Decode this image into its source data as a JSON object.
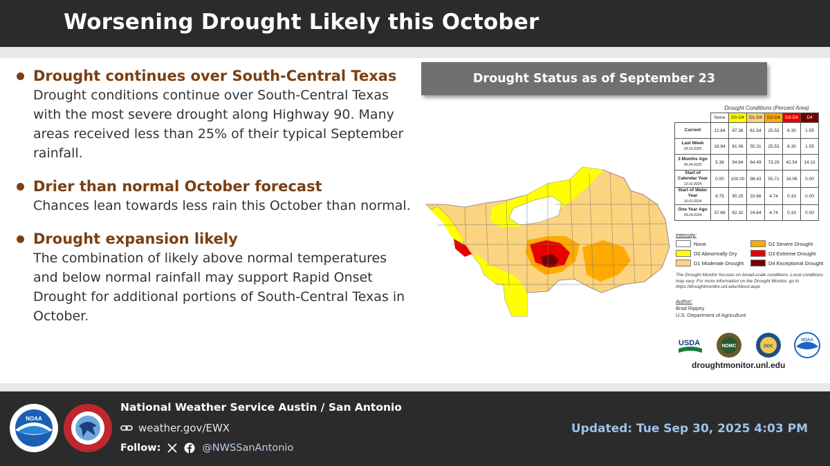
{
  "header": {
    "title": "Worsening Drought Likely this October"
  },
  "bullets": [
    {
      "heading": "Drought continues over South-Central Texas",
      "body": "Drought conditions continue over South-Central Texas with the most severe drought along Highway 90. Many areas received less than 25% of their typical September rainfall."
    },
    {
      "heading": "Drier than normal October forecast",
      "body": "Chances lean towards less rain this October than normal."
    },
    {
      "heading": "Drought expansion likely",
      "body": "The combination of likely above normal temperatures and below normal rainfall may support Rapid Onset Drought for additional portions of South-Central Texas in October."
    }
  ],
  "map": {
    "title": "Drought Status as of September 23",
    "table_caption": "Drought Conditions (Percent Area)",
    "columns": [
      "None",
      "D0-D4",
      "D1-D4",
      "D2-D4",
      "D3-D4",
      "D4"
    ],
    "column_colors": [
      "#ffffff",
      "#ffff00",
      "#fcd37f",
      "#ffaa00",
      "#e60000",
      "#730000"
    ],
    "rows": [
      {
        "label": "Current",
        "date": "",
        "values": [
          "12.64",
          "87.36",
          "61.54",
          "25.53",
          "6.30",
          "1.05"
        ]
      },
      {
        "label": "Last Week",
        "date": "09-16-2025",
        "values": [
          "18.94",
          "81.06",
          "55.31",
          "25.53",
          "6.30",
          "1.05"
        ]
      },
      {
        "label": "3 Months Ago",
        "date": "06-24-2025",
        "values": [
          "5.36",
          "94.64",
          "84.49",
          "73.29",
          "42.54",
          "14.13"
        ]
      },
      {
        "label": "Start of Calendar Year",
        "date": "12-31-2024",
        "values": [
          "0.00",
          "100.00",
          "98.43",
          "55.71",
          "18.06",
          "0.00"
        ]
      },
      {
        "label": "Start of Water Year",
        "date": "10-01-2024",
        "values": [
          "9.75",
          "90.25",
          "33.66",
          "4.74",
          "0.33",
          "0.00"
        ]
      },
      {
        "label": "One Year Ago",
        "date": "09-24-2024",
        "values": [
          "37.68",
          "62.32",
          "24.64",
          "4.74",
          "0.33",
          "0.00"
        ]
      }
    ],
    "intensity_title": "Intensity:",
    "intensity": [
      {
        "label": "None",
        "color": "#ffffff"
      },
      {
        "label": "D2 Severe Drought",
        "color": "#ffaa00"
      },
      {
        "label": "D0 Abnormally Dry",
        "color": "#ffff00"
      },
      {
        "label": "D3 Extreme Drought",
        "color": "#e60000"
      },
      {
        "label": "D1 Moderate Drought",
        "color": "#fcd37f"
      },
      {
        "label": "D4 Exceptional Drought",
        "color": "#730000"
      }
    ],
    "note": "The Drought Monitor focuses on broad-scale conditions. Local conditions may vary. For more information on the Drought Monitor, go to https://droughtmonitor.unl.edu/About.aspx",
    "author_title": "Author:",
    "author_name": "Brad Rippey",
    "author_org": "U.S. Department of Agriculture",
    "logos": {
      "usda": "USDA",
      "ndmc": "NDMC",
      "doc": "DOC",
      "noaa": "NOAA"
    },
    "url": "droughtmonitor.unl.edu"
  },
  "footer": {
    "office": "National Weather Service Austin / San Antonio",
    "website": "weather.gov/EWX",
    "follow_label": "Follow:",
    "handle": "@NWSSanAntonio",
    "updated": "Updated: Tue Sep 30, 2025 4:03 PM",
    "noaa_logo_text": "NOAA"
  },
  "colors": {
    "header_bg": "#2b2b2b",
    "accent_brown": "#7a3f12",
    "updated_blue": "#9dc3ea"
  }
}
